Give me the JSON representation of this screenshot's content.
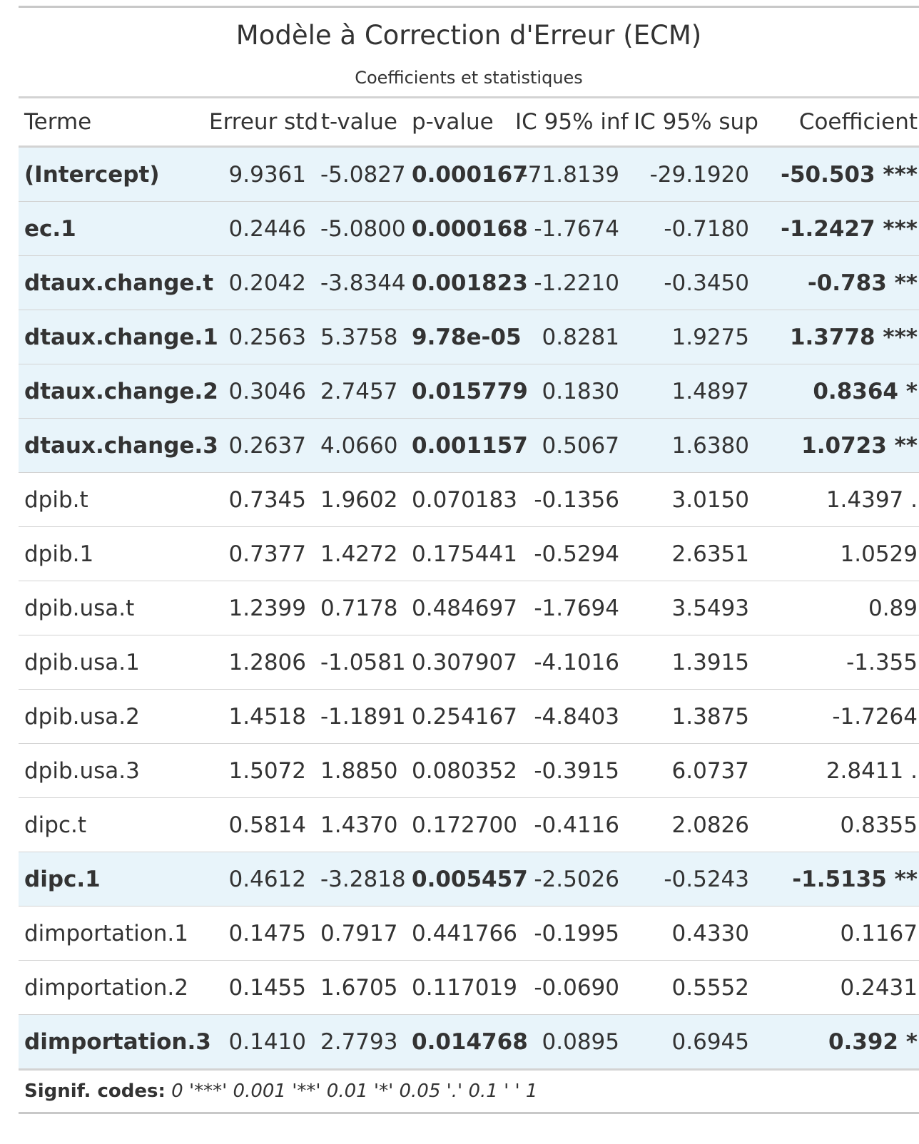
{
  "title": "Modèle à Correction d'Erreur (ECM)",
  "subtitle": "Coefficients et statistiques",
  "columns": [
    "Terme",
    "Erreur std",
    "t-value",
    "p-value",
    "IC 95% inf",
    "IC 95% sup",
    "Coefficient"
  ],
  "rows": [
    {
      "term": "(Intercept)",
      "se": "9.9361",
      "t": "-5.0827",
      "p": "0.000167",
      "lo": "-71.8139",
      "hi": "-29.1920",
      "coef": "-50.503 ***",
      "significant": true
    },
    {
      "term": "ec.1",
      "se": "0.2446",
      "t": "-5.0800",
      "p": "0.000168",
      "lo": "-1.7674",
      "hi": "-0.7180",
      "coef": "-1.2427 ***",
      "significant": true
    },
    {
      "term": "dtaux.change.t",
      "se": "0.2042",
      "t": "-3.8344",
      "p": "0.001823",
      "lo": "-1.2210",
      "hi": "-0.3450",
      "coef": "-0.783 **",
      "significant": true
    },
    {
      "term": "dtaux.change.1",
      "se": "0.2563",
      "t": "5.3758",
      "p": "9.78e-05",
      "lo": "0.8281",
      "hi": "1.9275",
      "coef": "1.3778 ***",
      "significant": true
    },
    {
      "term": "dtaux.change.2",
      "se": "0.3046",
      "t": "2.7457",
      "p": "0.015779",
      "lo": "0.1830",
      "hi": "1.4897",
      "coef": "0.8364 *",
      "significant": true
    },
    {
      "term": "dtaux.change.3",
      "se": "0.2637",
      "t": "4.0660",
      "p": "0.001157",
      "lo": "0.5067",
      "hi": "1.6380",
      "coef": "1.0723 **",
      "significant": true
    },
    {
      "term": "dpib.t",
      "se": "0.7345",
      "t": "1.9602",
      "p": "0.070183",
      "lo": "-0.1356",
      "hi": "3.0150",
      "coef": "1.4397 .",
      "significant": false
    },
    {
      "term": "dpib.1",
      "se": "0.7377",
      "t": "1.4272",
      "p": "0.175441",
      "lo": "-0.5294",
      "hi": "2.6351",
      "coef": "1.0529",
      "significant": false
    },
    {
      "term": "dpib.usa.t",
      "se": "1.2399",
      "t": "0.7178",
      "p": "0.484697",
      "lo": "-1.7694",
      "hi": "3.5493",
      "coef": "0.89",
      "significant": false
    },
    {
      "term": "dpib.usa.1",
      "se": "1.2806",
      "t": "-1.0581",
      "p": "0.307907",
      "lo": "-4.1016",
      "hi": "1.3915",
      "coef": "-1.355",
      "significant": false
    },
    {
      "term": "dpib.usa.2",
      "se": "1.4518",
      "t": "-1.1891",
      "p": "0.254167",
      "lo": "-4.8403",
      "hi": "1.3875",
      "coef": "-1.7264",
      "significant": false
    },
    {
      "term": "dpib.usa.3",
      "se": "1.5072",
      "t": "1.8850",
      "p": "0.080352",
      "lo": "-0.3915",
      "hi": "6.0737",
      "coef": "2.8411 .",
      "significant": false
    },
    {
      "term": "dipc.t",
      "se": "0.5814",
      "t": "1.4370",
      "p": "0.172700",
      "lo": "-0.4116",
      "hi": "2.0826",
      "coef": "0.8355",
      "significant": false
    },
    {
      "term": "dipc.1",
      "se": "0.4612",
      "t": "-3.2818",
      "p": "0.005457",
      "lo": "-2.5026",
      "hi": "-0.5243",
      "coef": "-1.5135 **",
      "significant": true
    },
    {
      "term": "dimportation.1",
      "se": "0.1475",
      "t": "0.7917",
      "p": "0.441766",
      "lo": "-0.1995",
      "hi": "0.4330",
      "coef": "0.1167",
      "significant": false
    },
    {
      "term": "dimportation.2",
      "se": "0.1455",
      "t": "1.6705",
      "p": "0.117019",
      "lo": "-0.0690",
      "hi": "0.5552",
      "coef": "0.2431",
      "significant": false
    },
    {
      "term": "dimportation.3",
      "se": "0.1410",
      "t": "2.7793",
      "p": "0.014768",
      "lo": "0.0895",
      "hi": "0.6945",
      "coef": "0.392 *",
      "significant": true
    }
  ],
  "footnote": {
    "label": "Signif. codes:",
    "codes": "0 '***' 0.001 '**' 0.01 '*' 0.05 '.' 0.1 ' ' 1"
  },
  "colors": {
    "highlight_row": "#e8f4fa",
    "rule": "#d3d3d3",
    "text": "#333333"
  }
}
